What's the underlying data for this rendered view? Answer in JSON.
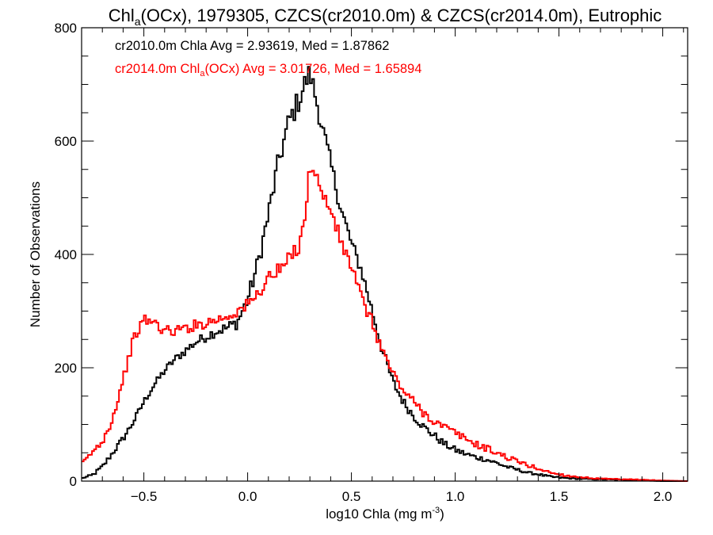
{
  "chart_data": {
    "type": "line",
    "title": {
      "prefix": "Chl",
      "sub": "a",
      "rest": "(OCx), 1979305, CZCS(cr2010.0m) & CZCS(cr2014.0m), Eutrophic"
    },
    "xlabel": {
      "main": "log10 Chla (mg m",
      "sup": "-3",
      "end": ")"
    },
    "ylabel": "Number of Observations",
    "xlim": [
      -0.8,
      2.12
    ],
    "ylim": [
      0,
      800
    ],
    "xticks": [
      {
        "v": -0.5,
        "label": "−0.5"
      },
      {
        "v": 0.0,
        "label": "0.0"
      },
      {
        "v": 0.5,
        "label": "0.5"
      },
      {
        "v": 1.0,
        "label": "1.0"
      },
      {
        "v": 1.5,
        "label": "1.5"
      },
      {
        "v": 2.0,
        "label": "2.0"
      }
    ],
    "xminor": 0.1,
    "yticks": [
      {
        "v": 0,
        "label": "0"
      },
      {
        "v": 200,
        "label": "200"
      },
      {
        "v": 400,
        "label": "400"
      },
      {
        "v": 600,
        "label": "600"
      },
      {
        "v": 800,
        "label": "800"
      }
    ],
    "yminor": 50,
    "grid": false,
    "bin_width": 0.01,
    "annotations": {
      "black": "cr2010.0m Chla Avg = 2.93619, Med = 1.87862",
      "red": {
        "prefix": "cr2014.0m Chl",
        "sub": "a",
        "rest": "(OCx) Avg = 3.01726, Med = 1.65894"
      }
    },
    "series": [
      {
        "color": "#000000",
        "x": [
          -0.8,
          -0.75,
          -0.7,
          -0.65,
          -0.6,
          -0.55,
          -0.5,
          -0.45,
          -0.4,
          -0.35,
          -0.3,
          -0.25,
          -0.2,
          -0.15,
          -0.1,
          -0.05,
          0.0,
          0.05,
          0.1,
          0.15,
          0.2,
          0.25,
          0.28,
          0.3,
          0.32,
          0.35,
          0.4,
          0.45,
          0.5,
          0.55,
          0.6,
          0.65,
          0.7,
          0.75,
          0.8,
          0.85,
          0.9,
          0.95,
          1.0,
          1.05,
          1.1,
          1.15,
          1.2,
          1.25,
          1.3,
          1.35,
          1.4,
          1.45,
          1.5,
          1.55,
          1.6,
          1.7,
          1.8,
          1.9,
          2.0,
          2.12
        ],
        "values": [
          5,
          10,
          25,
          50,
          75,
          105,
          140,
          170,
          195,
          215,
          230,
          245,
          255,
          265,
          270,
          280,
          320,
          385,
          470,
          565,
          635,
          675,
          705,
          720,
          690,
          640,
          560,
          480,
          420,
          370,
          300,
          230,
          175,
          140,
          115,
          95,
          80,
          65,
          55,
          48,
          42,
          38,
          32,
          25,
          20,
          15,
          12,
          8,
          6,
          5,
          4,
          3,
          2,
          1,
          0,
          0
        ],
        "jitter": [
          0,
          3,
          4,
          5,
          6,
          6,
          6,
          6,
          7,
          7,
          8,
          8,
          9,
          10,
          11,
          12,
          14,
          16,
          18,
          20,
          22,
          22,
          22,
          20,
          20,
          18,
          16,
          14,
          12,
          12,
          11,
          10,
          9,
          8,
          8,
          7,
          7,
          6,
          6,
          5,
          5,
          4,
          4,
          3,
          3,
          2,
          2,
          2,
          2,
          1,
          1,
          1,
          1,
          0,
          0,
          0
        ]
      },
      {
        "color": "#ff0000",
        "x": [
          -0.8,
          -0.75,
          -0.7,
          -0.65,
          -0.6,
          -0.55,
          -0.5,
          -0.45,
          -0.4,
          -0.35,
          -0.3,
          -0.25,
          -0.2,
          -0.15,
          -0.1,
          -0.05,
          0.0,
          0.05,
          0.1,
          0.15,
          0.2,
          0.25,
          0.28,
          0.3,
          0.32,
          0.35,
          0.4,
          0.45,
          0.5,
          0.55,
          0.6,
          0.65,
          0.7,
          0.75,
          0.8,
          0.85,
          0.9,
          0.95,
          1.0,
          1.05,
          1.1,
          1.15,
          1.2,
          1.25,
          1.3,
          1.35,
          1.4,
          1.45,
          1.5,
          1.55,
          1.6,
          1.7,
          1.8,
          1.9,
          2.0,
          2.12
        ],
        "values": [
          30,
          50,
          70,
          110,
          180,
          250,
          285,
          280,
          265,
          265,
          270,
          275,
          280,
          285,
          290,
          300,
          310,
          330,
          360,
          370,
          390,
          420,
          480,
          550,
          560,
          510,
          480,
          420,
          380,
          320,
          280,
          230,
          190,
          160,
          140,
          120,
          105,
          95,
          85,
          75,
          65,
          58,
          50,
          42,
          35,
          28,
          22,
          16,
          12,
          9,
          7,
          4,
          3,
          2,
          1,
          0
        ],
        "jitter": [
          3,
          5,
          6,
          7,
          8,
          9,
          10,
          10,
          10,
          10,
          10,
          10,
          10,
          10,
          10,
          11,
          12,
          12,
          14,
          14,
          15,
          16,
          16,
          16,
          16,
          15,
          14,
          13,
          12,
          12,
          11,
          10,
          9,
          9,
          8,
          8,
          7,
          7,
          7,
          6,
          6,
          6,
          5,
          5,
          4,
          4,
          3,
          3,
          2,
          2,
          1,
          1,
          1,
          1,
          0,
          0
        ]
      }
    ]
  }
}
